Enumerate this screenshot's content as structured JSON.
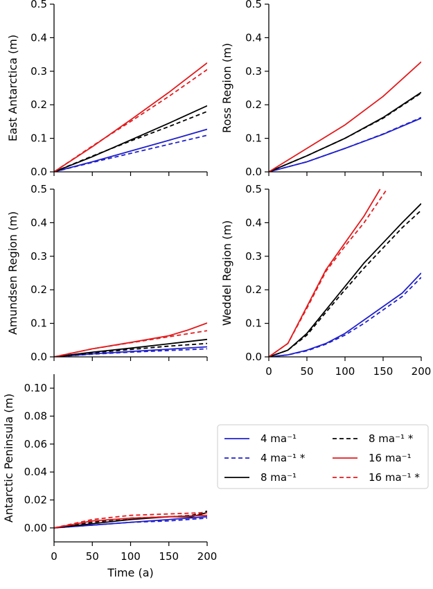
{
  "chart_data": [
    {
      "type": "line",
      "ylabel": "East Antarctica (m)",
      "xlabel": "",
      "xlim": [
        0,
        200
      ],
      "ylim": [
        0,
        0.5
      ],
      "yticks": [
        "0.0",
        "0.1",
        "0.2",
        "0.3",
        "0.4",
        "0.5"
      ],
      "xticks": [],
      "series": [
        {
          "key": "s4",
          "x": [
            0,
            50,
            100,
            150,
            200
          ],
          "y": [
            0,
            0.03,
            0.062,
            0.094,
            0.127
          ]
        },
        {
          "key": "s4d",
          "x": [
            0,
            50,
            100,
            150,
            200
          ],
          "y": [
            0,
            0.028,
            0.055,
            0.082,
            0.109
          ]
        },
        {
          "key": "s8",
          "x": [
            0,
            50,
            100,
            150,
            200
          ],
          "y": [
            0,
            0.045,
            0.095,
            0.145,
            0.197
          ]
        },
        {
          "key": "s8d",
          "x": [
            0,
            50,
            100,
            150,
            200
          ],
          "y": [
            0,
            0.047,
            0.092,
            0.135,
            0.18
          ]
        },
        {
          "key": "s16",
          "x": [
            0,
            50,
            100,
            150,
            200
          ],
          "y": [
            0,
            0.075,
            0.155,
            0.237,
            0.325
          ]
        },
        {
          "key": "s16d",
          "x": [
            0,
            50,
            100,
            150,
            200
          ],
          "y": [
            0,
            0.077,
            0.15,
            0.225,
            0.305
          ]
        }
      ]
    },
    {
      "type": "line",
      "ylabel": "Ross Region (m)",
      "xlabel": "",
      "xlim": [
        0,
        200
      ],
      "ylim": [
        0,
        0.5
      ],
      "yticks": [
        "0.0",
        "0.1",
        "0.2",
        "0.3",
        "0.4",
        "0.5"
      ],
      "xticks": [],
      "series": [
        {
          "key": "s4",
          "x": [
            0,
            50,
            100,
            150,
            200
          ],
          "y": [
            0,
            0.03,
            0.07,
            0.112,
            0.16
          ]
        },
        {
          "key": "s4d",
          "x": [
            0,
            50,
            100,
            150,
            200
          ],
          "y": [
            0,
            0.03,
            0.07,
            0.113,
            0.162
          ]
        },
        {
          "key": "s8",
          "x": [
            0,
            50,
            100,
            150,
            200
          ],
          "y": [
            0,
            0.048,
            0.1,
            0.162,
            0.237
          ]
        },
        {
          "key": "s8d",
          "x": [
            0,
            50,
            100,
            150,
            200
          ],
          "y": [
            0,
            0.048,
            0.1,
            0.16,
            0.235
          ]
        },
        {
          "key": "s16",
          "x": [
            0,
            50,
            100,
            150,
            200
          ],
          "y": [
            0,
            0.07,
            0.14,
            0.225,
            0.328
          ]
        }
      ]
    },
    {
      "type": "line",
      "ylabel": "Amundsen Region (m)",
      "xlabel": "",
      "xlim": [
        0,
        200
      ],
      "ylim": [
        0,
        0.5
      ],
      "yticks": [
        "0.0",
        "0.1",
        "0.2",
        "0.3",
        "0.4",
        "0.5"
      ],
      "xticks": [],
      "series": [
        {
          "key": "s4",
          "x": [
            0,
            50,
            100,
            150,
            200
          ],
          "y": [
            0,
            0.009,
            0.016,
            0.023,
            0.03
          ]
        },
        {
          "key": "s4d",
          "x": [
            0,
            50,
            100,
            150,
            200
          ],
          "y": [
            0,
            0.008,
            0.014,
            0.019,
            0.024
          ]
        },
        {
          "key": "s8",
          "x": [
            0,
            50,
            100,
            150,
            200
          ],
          "y": [
            0,
            0.014,
            0.026,
            0.039,
            0.052
          ]
        },
        {
          "key": "s8d",
          "x": [
            0,
            50,
            100,
            150,
            200
          ],
          "y": [
            0,
            0.012,
            0.022,
            0.032,
            0.04
          ]
        },
        {
          "key": "s16",
          "x": [
            0,
            50,
            100,
            150,
            175,
            200
          ],
          "y": [
            0,
            0.024,
            0.043,
            0.063,
            0.08,
            0.101
          ]
        },
        {
          "key": "s16d",
          "x": [
            0,
            50,
            100,
            150,
            200
          ],
          "y": [
            0,
            0.024,
            0.042,
            0.06,
            0.078
          ]
        }
      ]
    },
    {
      "type": "line",
      "ylabel": "Weddel Region (m)",
      "xlabel": "",
      "xlim": [
        0,
        200
      ],
      "ylim": [
        0,
        0.5
      ],
      "yticks": [
        "0.0",
        "0.1",
        "0.2",
        "0.3",
        "0.4",
        "0.5"
      ],
      "xticks": [
        "0",
        "50",
        "100",
        "150",
        "200"
      ],
      "series": [
        {
          "key": "s4",
          "x": [
            0,
            25,
            50,
            75,
            100,
            125,
            150,
            175,
            200
          ],
          "y": [
            0,
            0.006,
            0.02,
            0.04,
            0.07,
            0.11,
            0.15,
            0.19,
            0.25
          ]
        },
        {
          "key": "s4d",
          "x": [
            0,
            25,
            50,
            75,
            100,
            125,
            150,
            175,
            200
          ],
          "y": [
            0,
            0.006,
            0.018,
            0.038,
            0.065,
            0.1,
            0.14,
            0.18,
            0.237
          ]
        },
        {
          "key": "s8",
          "x": [
            0,
            25,
            50,
            75,
            100,
            125,
            150,
            175,
            200
          ],
          "y": [
            0,
            0.02,
            0.07,
            0.14,
            0.21,
            0.28,
            0.34,
            0.4,
            0.457
          ]
        },
        {
          "key": "s8d",
          "x": [
            0,
            25,
            50,
            75,
            100,
            125,
            150,
            175,
            200
          ],
          "y": [
            0,
            0.02,
            0.065,
            0.133,
            0.2,
            0.265,
            0.325,
            0.385,
            0.437
          ]
        },
        {
          "key": "s16",
          "x": [
            0,
            25,
            50,
            75,
            100,
            125,
            146
          ],
          "y": [
            0,
            0.04,
            0.15,
            0.26,
            0.34,
            0.42,
            0.5
          ]
        },
        {
          "key": "s16d",
          "x": [
            0,
            25,
            50,
            75,
            100,
            125,
            155
          ],
          "y": [
            0,
            0.04,
            0.145,
            0.255,
            0.33,
            0.4,
            0.5
          ]
        }
      ]
    },
    {
      "type": "line",
      "ylabel": "Antarctic Peninsula (m)",
      "xlabel": "Time (a)",
      "xlim": [
        0,
        200
      ],
      "ylim": [
        -0.01,
        0.11
      ],
      "yticks": [
        "0.00",
        "0.02",
        "0.04",
        "0.06",
        "0.08",
        "0.10"
      ],
      "xticks": [
        "0",
        "50",
        "100",
        "150",
        "200"
      ],
      "series": [
        {
          "key": "s4",
          "x": [
            0,
            50,
            100,
            150,
            200
          ],
          "y": [
            0,
            0.002,
            0.004,
            0.006,
            0.008
          ]
        },
        {
          "key": "s4d",
          "x": [
            0,
            50,
            100,
            150,
            200
          ],
          "y": [
            0,
            0.002,
            0.004,
            0.005,
            0.007
          ]
        },
        {
          "key": "s8",
          "x": [
            0,
            50,
            100,
            150,
            180,
            200
          ],
          "y": [
            0,
            0.003,
            0.006,
            0.008,
            0.008,
            0.011
          ]
        },
        {
          "key": "s8d",
          "x": [
            0,
            50,
            100,
            150,
            180,
            200
          ],
          "y": [
            0,
            0.004,
            0.007,
            0.008,
            0.009,
            0.012
          ]
        },
        {
          "key": "s16",
          "x": [
            0,
            50,
            100,
            150,
            200
          ],
          "y": [
            0,
            0.005,
            0.007,
            0.008,
            0.009
          ]
        },
        {
          "key": "s16d",
          "x": [
            0,
            50,
            100,
            150,
            200
          ],
          "y": [
            0,
            0.006,
            0.009,
            0.01,
            0.011
          ]
        }
      ]
    }
  ],
  "legend": {
    "placement": "right of bottom panel",
    "entries": [
      {
        "key": "s4",
        "label": "4 ma⁻¹",
        "color": "#1f1fcc",
        "dashed": false
      },
      {
        "key": "s4d",
        "label": "4 ma⁻¹ *",
        "color": "#1f1fcc",
        "dashed": true
      },
      {
        "key": "s8",
        "label": "8 ma⁻¹",
        "color": "#000000",
        "dashed": false
      },
      {
        "key": "s8d",
        "label": "8 ma⁻¹ *",
        "color": "#000000",
        "dashed": true
      },
      {
        "key": "s16",
        "label": "16 ma⁻¹",
        "color": "#e31a1c",
        "dashed": false
      },
      {
        "key": "s16d",
        "label": "16 ma⁻¹ *",
        "color": "#e31a1c",
        "dashed": true
      }
    ]
  }
}
